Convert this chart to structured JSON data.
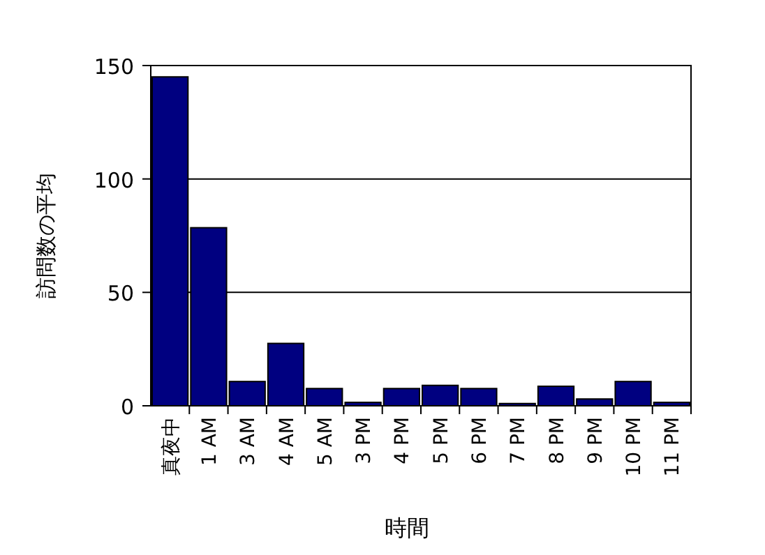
{
  "chart_data": {
    "type": "bar",
    "xlabel": "時間",
    "ylabel": "訪問数の平均",
    "categories": [
      "真夜中",
      "1 AM",
      "3 AM",
      "4 AM",
      "5 AM",
      "3 PM",
      "4 PM",
      "5 PM",
      "6 PM",
      "7 PM",
      "8 PM",
      "9 PM",
      "10 PM",
      "11 PM"
    ],
    "values": [
      145,
      78.5,
      10.7,
      27.5,
      7.6,
      1.5,
      7.6,
      9,
      7.6,
      1,
      8.6,
      3,
      10.7,
      1.5
    ],
    "color": "#000080",
    "ylim": [
      0,
      150
    ],
    "yticks": [
      0,
      50,
      100,
      150
    ],
    "grid": "y"
  }
}
